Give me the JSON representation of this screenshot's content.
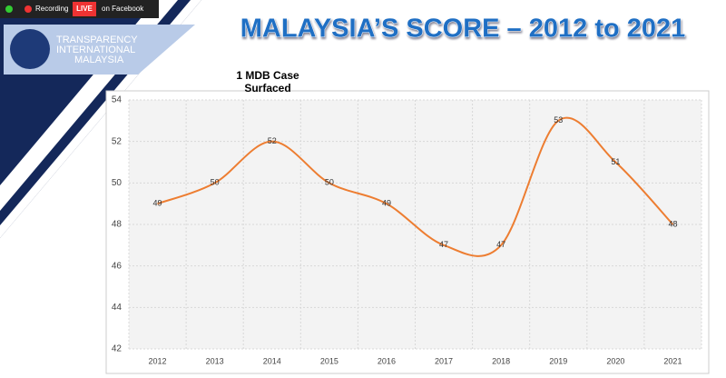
{
  "header": {
    "recording": "Recording",
    "live": "LIVE",
    "stream": "on Facebook"
  },
  "logo": {
    "lines": [
      "TRANSPARENCY",
      "INTERNATIONAL",
      "MALAYSIA"
    ]
  },
  "chart_data": {
    "type": "line",
    "title": "MALAYSIA’S SCORE – 2012 to 2021",
    "annotation": "1 MDB Case Surfaced",
    "categories": [
      "2012",
      "2013",
      "2014",
      "2015",
      "2016",
      "2017",
      "2018",
      "2019",
      "2020",
      "2021"
    ],
    "values": [
      49,
      50,
      52,
      50,
      49,
      47,
      47,
      53,
      51,
      48
    ],
    "color": "#ed7d31",
    "smooth": true,
    "ylim": [
      42,
      54
    ],
    "yticks": [
      42,
      44,
      46,
      48,
      50,
      52,
      54
    ],
    "grid": true
  }
}
